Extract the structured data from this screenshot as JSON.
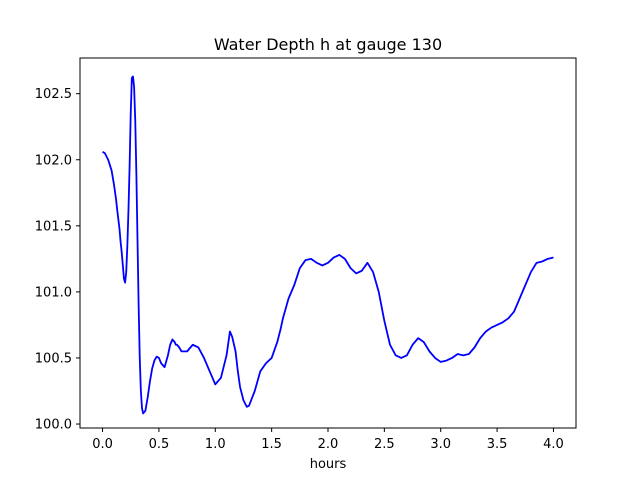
{
  "chart_data": {
    "type": "line",
    "title": "Water Depth h at gauge 130",
    "xlabel": "hours",
    "ylabel": "",
    "xlim": [
      -0.2,
      4.2
    ],
    "ylim": [
      99.97,
      102.77
    ],
    "xticks": [
      0.0,
      0.5,
      1.0,
      1.5,
      2.0,
      2.5,
      3.0,
      3.5,
      4.0
    ],
    "xtick_labels": [
      "0.0",
      "0.5",
      "1.0",
      "1.5",
      "2.0",
      "2.5",
      "3.0",
      "3.5",
      "4.0"
    ],
    "yticks": [
      100.0,
      100.5,
      101.0,
      101.5,
      102.0,
      102.5
    ],
    "ytick_labels": [
      "100.0",
      "100.5",
      "101.0",
      "101.5",
      "102.0",
      "102.5"
    ],
    "grid": false,
    "series": [
      {
        "color": "#0000ff",
        "x": [
          0.0,
          0.02,
          0.05,
          0.08,
          0.1,
          0.11,
          0.12,
          0.13,
          0.14,
          0.15,
          0.16,
          0.17,
          0.18,
          0.19,
          0.2,
          0.21,
          0.22,
          0.23,
          0.24,
          0.25,
          0.26,
          0.27,
          0.28,
          0.29,
          0.3,
          0.31,
          0.32,
          0.33,
          0.34,
          0.35,
          0.36,
          0.38,
          0.4,
          0.42,
          0.44,
          0.46,
          0.48,
          0.5,
          0.52,
          0.55,
          0.58,
          0.6,
          0.62,
          0.64,
          0.65,
          0.66,
          0.68,
          0.7,
          0.75,
          0.8,
          0.85,
          0.9,
          0.95,
          1.0,
          1.05,
          1.1,
          1.13,
          1.15,
          1.18,
          1.2,
          1.22,
          1.25,
          1.28,
          1.3,
          1.35,
          1.4,
          1.45,
          1.5,
          1.55,
          1.58,
          1.6,
          1.65,
          1.7,
          1.75,
          1.8,
          1.85,
          1.9,
          1.95,
          2.0,
          2.05,
          2.1,
          2.15,
          2.2,
          2.25,
          2.3,
          2.35,
          2.4,
          2.45,
          2.5,
          2.55,
          2.6,
          2.65,
          2.7,
          2.75,
          2.8,
          2.85,
          2.9,
          2.95,
          3.0,
          3.05,
          3.1,
          3.15,
          3.2,
          3.25,
          3.3,
          3.35,
          3.4,
          3.45,
          3.5,
          3.55,
          3.6,
          3.65,
          3.7,
          3.75,
          3.8,
          3.85,
          3.9,
          3.95,
          4.0
        ],
        "y": [
          102.06,
          102.05,
          102.0,
          101.92,
          101.82,
          101.76,
          101.7,
          101.62,
          101.55,
          101.48,
          101.38,
          101.3,
          101.2,
          101.1,
          101.07,
          101.15,
          101.35,
          101.62,
          101.95,
          102.35,
          102.62,
          102.63,
          102.55,
          102.3,
          101.9,
          101.4,
          100.9,
          100.5,
          100.25,
          100.12,
          100.08,
          100.1,
          100.2,
          100.32,
          100.42,
          100.48,
          100.51,
          100.5,
          100.46,
          100.43,
          100.52,
          100.6,
          100.64,
          100.62,
          100.6,
          100.6,
          100.58,
          100.55,
          100.55,
          100.6,
          100.58,
          100.5,
          100.4,
          100.3,
          100.35,
          100.52,
          100.7,
          100.66,
          100.55,
          100.4,
          100.28,
          100.18,
          100.13,
          100.14,
          100.25,
          100.4,
          100.46,
          100.5,
          100.62,
          100.72,
          100.8,
          100.95,
          101.05,
          101.18,
          101.24,
          101.25,
          101.22,
          101.2,
          101.22,
          101.26,
          101.28,
          101.25,
          101.18,
          101.14,
          101.16,
          101.22,
          101.15,
          101.0,
          100.78,
          100.6,
          100.52,
          100.5,
          100.52,
          100.6,
          100.65,
          100.62,
          100.55,
          100.5,
          100.47,
          100.48,
          100.5,
          100.53,
          100.52,
          100.53,
          100.58,
          100.65,
          100.7,
          100.73,
          100.75,
          100.77,
          100.8,
          100.85,
          100.95,
          101.05,
          101.15,
          101.22,
          101.23,
          101.25,
          101.26
        ]
      }
    ]
  }
}
